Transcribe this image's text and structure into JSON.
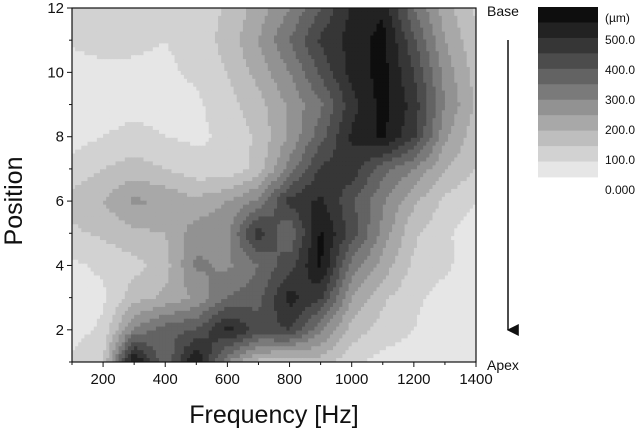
{
  "chart_data": {
    "type": "heatmap",
    "xlabel": "Frequency [Hz]",
    "ylabel": "Position",
    "xlim": [
      100,
      1400
    ],
    "ylim": [
      1,
      12
    ],
    "x_ticks": [
      200,
      400,
      600,
      800,
      1000,
      1200,
      1400
    ],
    "y_ticks": [
      2,
      4,
      6,
      8,
      10,
      12
    ],
    "legend": {
      "unit": "(µm)",
      "labels": [
        "500.0",
        "400.0",
        "300.0",
        "200.0",
        "100.0",
        "0.000"
      ],
      "levels": [
        0,
        50,
        100,
        150,
        200,
        250,
        300,
        350,
        400,
        450,
        500
      ],
      "colors": [
        "#e6e6e6",
        "#d2d2d2",
        "#bebebe",
        "#a8a8a8",
        "#929292",
        "#7a7a7a",
        "#636363",
        "#4c4c4c",
        "#363636",
        "#222222",
        "#0e0e0e"
      ]
    },
    "annotations": {
      "top": "Base",
      "bottom": "Apex",
      "arrow_direction": "down"
    },
    "x": [
      100,
      200,
      300,
      400,
      500,
      600,
      700,
      800,
      900,
      1000,
      1100,
      1200,
      1300,
      1400
    ],
    "y": [
      1,
      2,
      3,
      4,
      5,
      6,
      7,
      8,
      9,
      10,
      11,
      12
    ],
    "z": [
      [
        60,
        100,
        520,
        300,
        520,
        250,
        130,
        100,
        130,
        60,
        30,
        20,
        10,
        10
      ],
      [
        30,
        60,
        260,
        330,
        350,
        470,
        380,
        400,
        260,
        130,
        80,
        50,
        20,
        0
      ],
      [
        20,
        40,
        130,
        160,
        210,
        300,
        330,
        470,
        410,
        200,
        110,
        60,
        30,
        10
      ],
      [
        40,
        60,
        80,
        130,
        260,
        240,
        300,
        380,
        510,
        280,
        180,
        90,
        60,
        20
      ],
      [
        90,
        110,
        140,
        150,
        230,
        240,
        430,
        300,
        510,
        380,
        230,
        110,
        60,
        20
      ],
      [
        120,
        150,
        210,
        190,
        160,
        200,
        260,
        420,
        460,
        360,
        260,
        160,
        90,
        50
      ],
      [
        70,
        100,
        120,
        100,
        70,
        60,
        120,
        270,
        410,
        430,
        320,
        250,
        150,
        100
      ],
      [
        30,
        50,
        70,
        50,
        40,
        60,
        110,
        210,
        330,
        460,
        510,
        410,
        210,
        120
      ],
      [
        10,
        20,
        30,
        30,
        40,
        80,
        130,
        210,
        290,
        430,
        520,
        430,
        250,
        140
      ],
      [
        20,
        30,
        40,
        40,
        60,
        100,
        170,
        250,
        360,
        470,
        520,
        400,
        230,
        130
      ],
      [
        60,
        80,
        60,
        50,
        70,
        120,
        200,
        300,
        410,
        470,
        520,
        360,
        200,
        110
      ],
      [
        100,
        80,
        60,
        50,
        60,
        110,
        170,
        250,
        350,
        460,
        490,
        300,
        170,
        90
      ]
    ]
  }
}
